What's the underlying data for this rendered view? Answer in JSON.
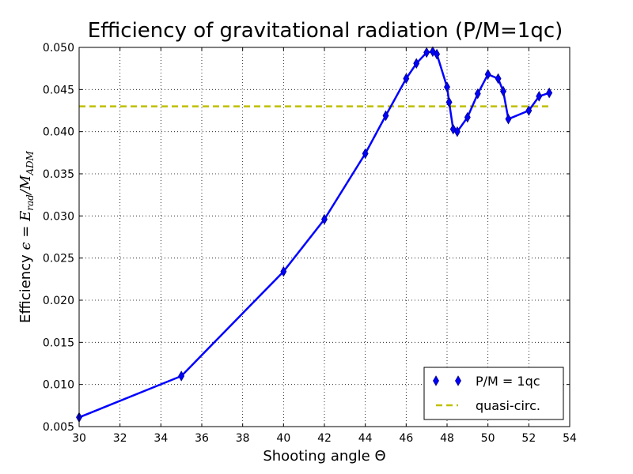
{
  "chart_data": {
    "type": "line",
    "title": "Efficiency of gravitational radiation (P/M=1qc)",
    "xlabel": "Shooting angle Θ",
    "ylabel": {
      "prefix": "Efficiency ",
      "symbol": "ϵ",
      "equals": " = ",
      "numerator": "E",
      "numerator_sub": "rad",
      "slash": "/",
      "denominator": "M",
      "denominator_sub": "ADM"
    },
    "xlim": [
      30,
      54
    ],
    "ylim": [
      0.005,
      0.05
    ],
    "grid": true,
    "legend_position": "lower-right",
    "x_ticks": [
      30,
      32,
      34,
      36,
      38,
      40,
      42,
      44,
      46,
      48,
      50,
      52,
      54
    ],
    "x_tick_labels": [
      "30",
      "32",
      "34",
      "36",
      "38",
      "40",
      "42",
      "44",
      "46",
      "48",
      "50",
      "52",
      "54"
    ],
    "y_ticks": [
      0.005,
      0.01,
      0.015,
      0.02,
      0.025,
      0.03,
      0.035,
      0.04,
      0.045,
      0.05
    ],
    "y_tick_labels": [
      "0.005",
      "0.010",
      "0.015",
      "0.020",
      "0.025",
      "0.030",
      "0.035",
      "0.040",
      "0.045",
      "0.050"
    ],
    "series": [
      {
        "name": "P/M = 1qc",
        "color": "#0000ff",
        "marker": "thin-diamond",
        "x": [
          30,
          35,
          40,
          42,
          44,
          45,
          46,
          46.5,
          47,
          47.3,
          47.5,
          48,
          48.1,
          48.3,
          48.5,
          49,
          49.5,
          50,
          50.5,
          50.75,
          51,
          52,
          52.5,
          53
        ],
        "y": [
          0.0061,
          0.011,
          0.0234,
          0.0296,
          0.0374,
          0.0419,
          0.0463,
          0.0481,
          0.0494,
          0.0495,
          0.0492,
          0.0453,
          0.0435,
          0.0403,
          0.04,
          0.0417,
          0.0445,
          0.0468,
          0.0463,
          0.0448,
          0.0415,
          0.0425,
          0.0442,
          0.0446
        ]
      },
      {
        "name": "quasi-circ.",
        "color": "#bfbf00",
        "style": "dashed",
        "x": [
          30,
          53
        ],
        "y": [
          0.043,
          0.043
        ]
      }
    ]
  }
}
